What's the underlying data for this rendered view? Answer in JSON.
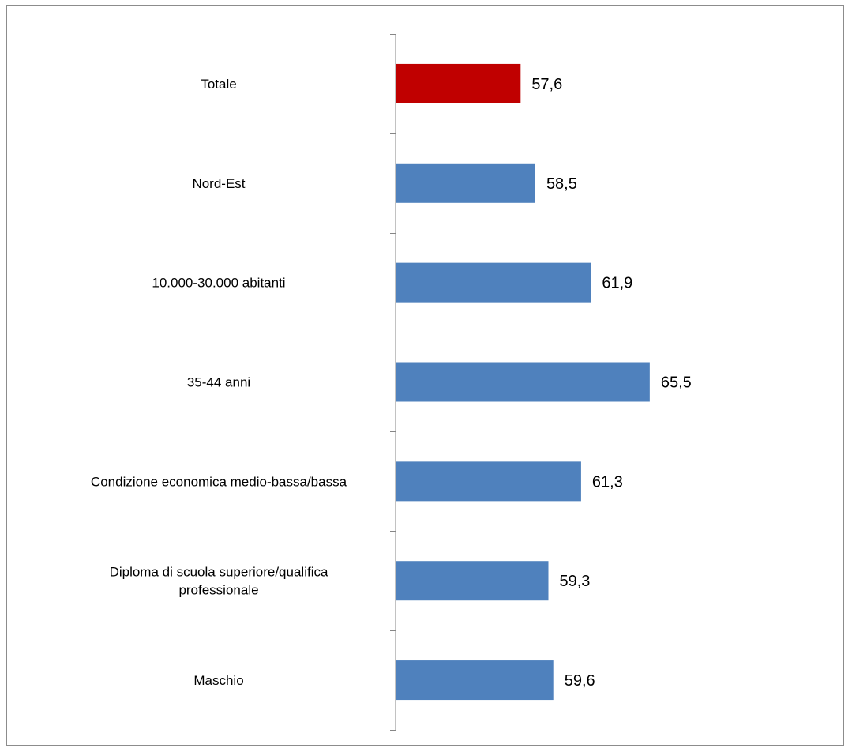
{
  "chart_data": {
    "type": "bar",
    "orientation": "horizontal",
    "categories": [
      [
        "Totale"
      ],
      [
        "Nord-Est"
      ],
      [
        "10.000-30.000 abitanti"
      ],
      [
        "35-44 anni"
      ],
      [
        "Condizione economica medio-bassa/bassa"
      ],
      [
        "Diploma di scuola superiore/qualifica",
        "professionale"
      ],
      [
        "Maschio"
      ]
    ],
    "values": [
      57.6,
      58.5,
      61.9,
      65.5,
      61.3,
      59.3,
      59.6
    ],
    "value_labels": [
      "57,6",
      "58,5",
      "61,9",
      "65,5",
      "61,3",
      "59,3",
      "59,6"
    ],
    "bar_colors": [
      "#C00000",
      "#4F81BD",
      "#4F81BD",
      "#4F81BD",
      "#4F81BD",
      "#4F81BD",
      "#4F81BD"
    ],
    "xlim": [
      50,
      70
    ],
    "grid": false,
    "legend": "none"
  }
}
